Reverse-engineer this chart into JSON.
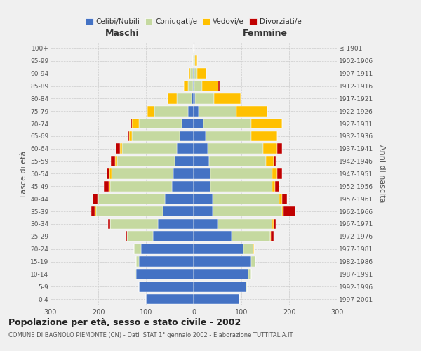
{
  "age_groups": [
    "0-4",
    "5-9",
    "10-14",
    "15-19",
    "20-24",
    "25-29",
    "30-34",
    "35-39",
    "40-44",
    "45-49",
    "50-54",
    "55-59",
    "60-64",
    "65-69",
    "70-74",
    "75-79",
    "80-84",
    "85-89",
    "90-94",
    "95-99",
    "100+"
  ],
  "birth_years": [
    "1997-2001",
    "1992-1996",
    "1987-1991",
    "1982-1986",
    "1977-1981",
    "1972-1976",
    "1967-1971",
    "1962-1966",
    "1957-1961",
    "1952-1956",
    "1947-1951",
    "1942-1946",
    "1937-1941",
    "1932-1936",
    "1927-1931",
    "1922-1926",
    "1917-1921",
    "1912-1916",
    "1907-1911",
    "1902-1906",
    "≤ 1901"
  ],
  "maschi": {
    "celibi": [
      100,
      115,
      120,
      115,
      110,
      85,
      75,
      65,
      60,
      45,
      42,
      40,
      35,
      30,
      25,
      12,
      5,
      2,
      2,
      0,
      0
    ],
    "coniugati": [
      0,
      0,
      2,
      5,
      15,
      55,
      100,
      140,
      140,
      130,
      130,
      120,
      115,
      100,
      90,
      70,
      30,
      10,
      5,
      1,
      0
    ],
    "vedovi": [
      0,
      0,
      0,
      0,
      0,
      0,
      0,
      2,
      2,
      3,
      5,
      5,
      5,
      5,
      15,
      15,
      20,
      8,
      3,
      0,
      0
    ],
    "divorziati": [
      0,
      0,
      0,
      0,
      0,
      3,
      5,
      8,
      10,
      10,
      5,
      8,
      8,
      3,
      3,
      0,
      0,
      0,
      0,
      0,
      0
    ]
  },
  "femmine": {
    "nubili": [
      95,
      110,
      115,
      120,
      105,
      80,
      50,
      40,
      40,
      35,
      35,
      32,
      30,
      25,
      20,
      10,
      3,
      2,
      2,
      1,
      0
    ],
    "coniugate": [
      0,
      2,
      5,
      10,
      20,
      80,
      115,
      145,
      140,
      130,
      130,
      120,
      115,
      95,
      100,
      80,
      40,
      15,
      5,
      2,
      0
    ],
    "vedove": [
      0,
      0,
      0,
      0,
      2,
      2,
      2,
      3,
      5,
      5,
      10,
      15,
      30,
      55,
      65,
      65,
      55,
      35,
      20,
      5,
      1
    ],
    "divorziate": [
      0,
      0,
      0,
      0,
      0,
      5,
      5,
      25,
      10,
      10,
      10,
      5,
      10,
      0,
      0,
      0,
      2,
      2,
      0,
      0,
      0
    ]
  },
  "colors": {
    "celibi_nubili": "#4472c4",
    "coniugati_e": "#c5d9a0",
    "vedovi_e": "#ffc000",
    "divorziati_e": "#c00000"
  },
  "xlim": 300,
  "title": "Popolazione per età, sesso e stato civile - 2002",
  "subtitle": "COMUNE DI BAGNOLO PIEMONTE (CN) - Dati ISTAT 1° gennaio 2002 - Elaborazione TUTTITALIA.IT",
  "ylabel_left": "Fasce di età",
  "ylabel_right": "Anni di nascita",
  "xlabel_left": "Maschi",
  "xlabel_right": "Femmine",
  "bg_color": "#f0f0f0",
  "bar_edge_color": "white"
}
